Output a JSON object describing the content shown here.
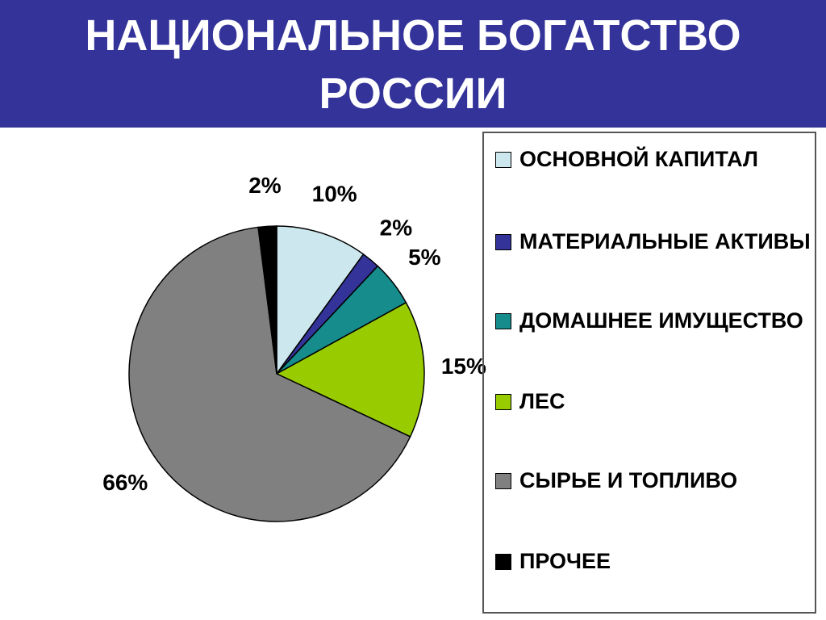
{
  "chart_data": {
    "type": "pie",
    "title": "НАЦИОНАЛЬНОЕ БОГАТСТВО РОССИИ",
    "categories": [
      "ОСНОВНОЙ КАПИТАЛ",
      "МАТЕРИАЛЬНЫЕ АКТИВЫ",
      "ДОМАШНЕЕ ИМУЩЕСТВО",
      "ЛЕС",
      "СЫРЬЕ И ТОПЛИВО",
      "ПРОЧЕЕ"
    ],
    "values": [
      10,
      2,
      5,
      15,
      66,
      2
    ],
    "value_labels": [
      "10%",
      "2%",
      "5%",
      "15%",
      "66%",
      "2%"
    ],
    "colors": [
      "#cce8ee",
      "#333399",
      "#168c8c",
      "#99cc00",
      "#808080",
      "#000000"
    ],
    "legend": "right"
  }
}
